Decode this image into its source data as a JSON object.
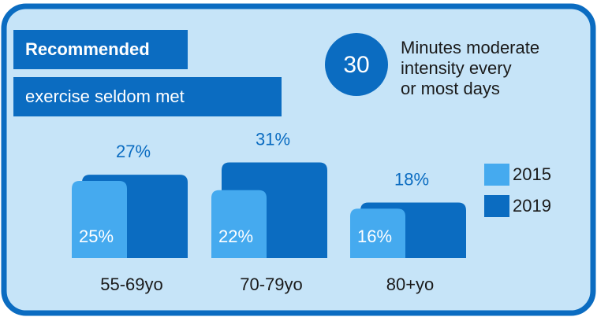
{
  "header": {
    "title_lines": [
      "Recommended",
      "exercise seldom met"
    ]
  },
  "badge": {
    "number": 30,
    "lines": [
      "Minutes moderate",
      "intensity every",
      "or most days"
    ]
  },
  "chart_data": {
    "type": "bar",
    "categories": [
      "55-69yo",
      "70-79yo",
      "80+yo"
    ],
    "series": [
      {
        "name": "2015",
        "color": "#45aaef",
        "values": [
          25,
          22,
          16
        ],
        "value_labels": [
          "25%",
          "22%",
          "16%"
        ]
      },
      {
        "name": "2019",
        "color": "#0b6cc1",
        "values": [
          27,
          31,
          18
        ],
        "value_labels": [
          "27%",
          "31%",
          "18%"
        ]
      }
    ]
  }
}
